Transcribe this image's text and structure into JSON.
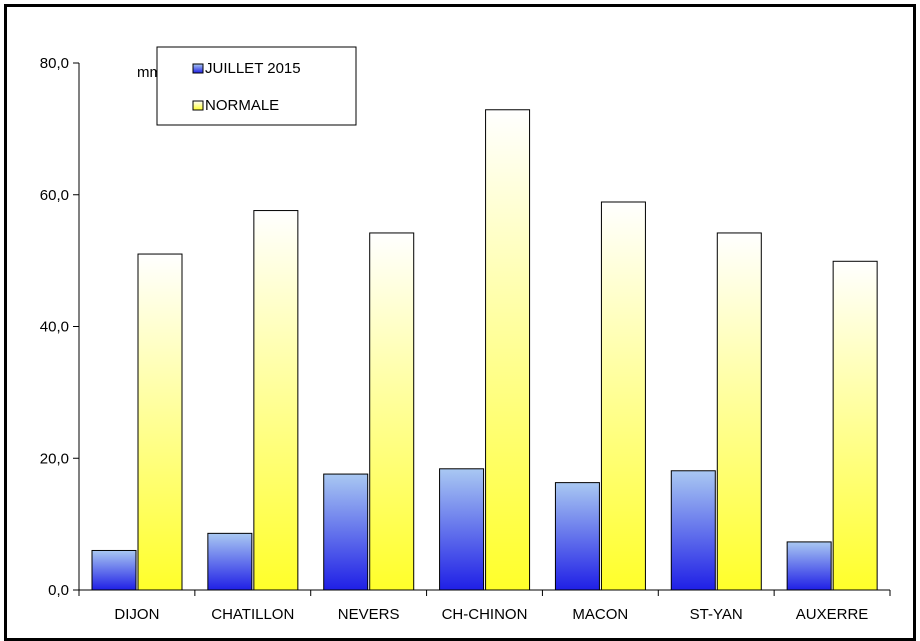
{
  "chart_data": {
    "type": "bar",
    "unit": "mm",
    "categories": [
      "DIJON",
      "CHATILLON",
      "NEVERS",
      "CH-CHINON",
      "MACON",
      "ST-YAN",
      "AUXERRE"
    ],
    "series": [
      {
        "name": "JUILLET 2015",
        "values": [
          6.0,
          8.6,
          17.6,
          18.4,
          16.3,
          18.1,
          7.3
        ],
        "color_top": "#a9c8f2",
        "color_bottom": "#1f1fe6"
      },
      {
        "name": "NORMALE",
        "values": [
          51.0,
          57.6,
          54.2,
          72.9,
          58.9,
          54.2,
          49.9
        ],
        "color_top": "#ffffff",
        "color_bottom": "#ffff2a"
      }
    ],
    "ylim": [
      0,
      80
    ],
    "yticks": [
      "0,0",
      "20,0",
      "40,0",
      "60,0",
      "80,0"
    ],
    "ytick_values": [
      0,
      20,
      40,
      60,
      80
    ],
    "legend_position": "top-left",
    "grid": false
  }
}
